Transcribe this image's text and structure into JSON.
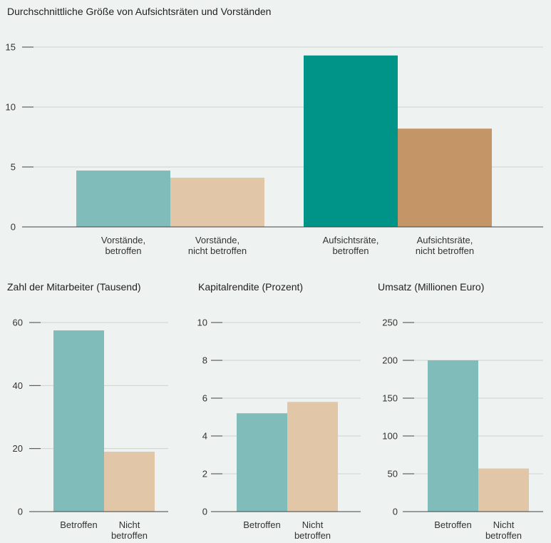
{
  "chart_data": [
    {
      "type": "bar",
      "title": "Durchschnittliche Größe von Aufsichtsräten und Vorständen",
      "categories": [
        "Vorstände,\nbetroffen",
        "Vorstände,\nnicht betroffen",
        "Aufsichtsräte,\nbetroffen",
        "Aufsichtsräte,\nnicht betroffen"
      ],
      "values": [
        4.7,
        4.1,
        14.3,
        8.2
      ],
      "colors": [
        "#7fbcba",
        "#e1c6a7",
        "#009387",
        "#c49566"
      ],
      "yticks": [
        0,
        5,
        10,
        15
      ],
      "ylim": [
        0,
        15
      ],
      "grid": true
    },
    {
      "type": "bar",
      "title": "Zahl der Mitarbeiter (Tausend)",
      "categories": [
        "Betroffen",
        "Nicht\nbetroffen"
      ],
      "values": [
        57.5,
        19
      ],
      "colors": [
        "#7fbcba",
        "#e1c6a7"
      ],
      "yticks": [
        0,
        20,
        40,
        60
      ],
      "ylim": [
        0,
        60
      ],
      "grid": true
    },
    {
      "type": "bar",
      "title": "Kapitalrendite (Prozent)",
      "categories": [
        "Betroffen",
        "Nicht\nbetroffen"
      ],
      "values": [
        5.2,
        5.8
      ],
      "colors": [
        "#7fbcba",
        "#e1c6a7"
      ],
      "yticks": [
        0,
        2,
        4,
        6,
        8,
        10
      ],
      "ylim": [
        0,
        10
      ],
      "grid": true
    },
    {
      "type": "bar",
      "title": "Umsatz (Millionen Euro)",
      "categories": [
        "Betroffen",
        "Nicht\nbetroffen"
      ],
      "values": [
        200,
        57
      ],
      "colors": [
        "#7fbcba",
        "#e1c6a7"
      ],
      "yticks": [
        0,
        50,
        100,
        150,
        200,
        250
      ],
      "ylim": [
        0,
        250
      ],
      "grid": true
    }
  ]
}
